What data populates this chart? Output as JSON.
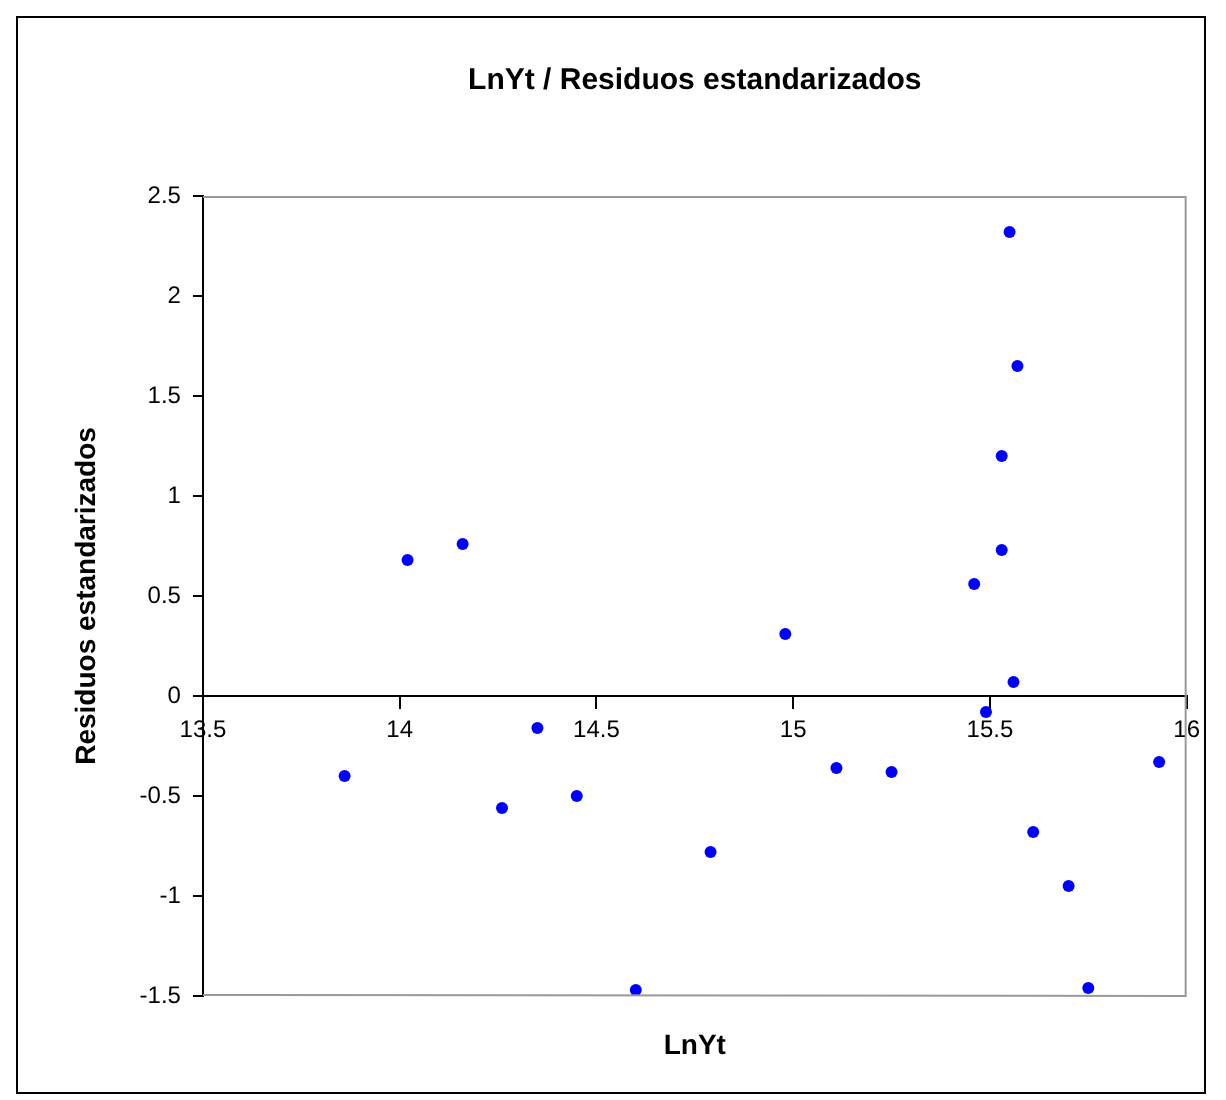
{
  "chart_data": {
    "type": "scatter",
    "title": "LnYt / Residuos estandarizados",
    "xlabel": "LnYt",
    "ylabel": "Residuos estandarizados",
    "x": [
      13.86,
      14.02,
      14.16,
      14.26,
      14.35,
      14.45,
      14.6,
      14.79,
      14.98,
      15.11,
      15.25,
      15.46,
      15.49,
      15.53,
      15.53,
      15.55,
      15.57,
      15.56,
      15.61,
      15.7,
      15.75,
      15.93
    ],
    "series": [
      {
        "color": "#0000ff",
        "values": [
          -0.4,
          0.68,
          0.76,
          -0.56,
          -0.16,
          -0.5,
          -1.47,
          -0.78,
          0.31,
          -0.36,
          -0.38,
          0.56,
          -0.08,
          0.73,
          1.2,
          2.32,
          1.65,
          0.07,
          -0.68,
          -0.95,
          -1.46,
          -0.33
        ]
      }
    ],
    "xlim": [
      13.5,
      16
    ],
    "xticks": [
      13.5,
      14,
      14.5,
      15,
      15.5,
      16
    ],
    "ylim": [
      -1.5,
      2.5
    ],
    "yticks": [
      -1.5,
      -1,
      -0.5,
      0,
      0.5,
      1,
      1.5,
      2,
      2.5
    ],
    "marker": "circle",
    "grid": false,
    "legend": false
  }
}
